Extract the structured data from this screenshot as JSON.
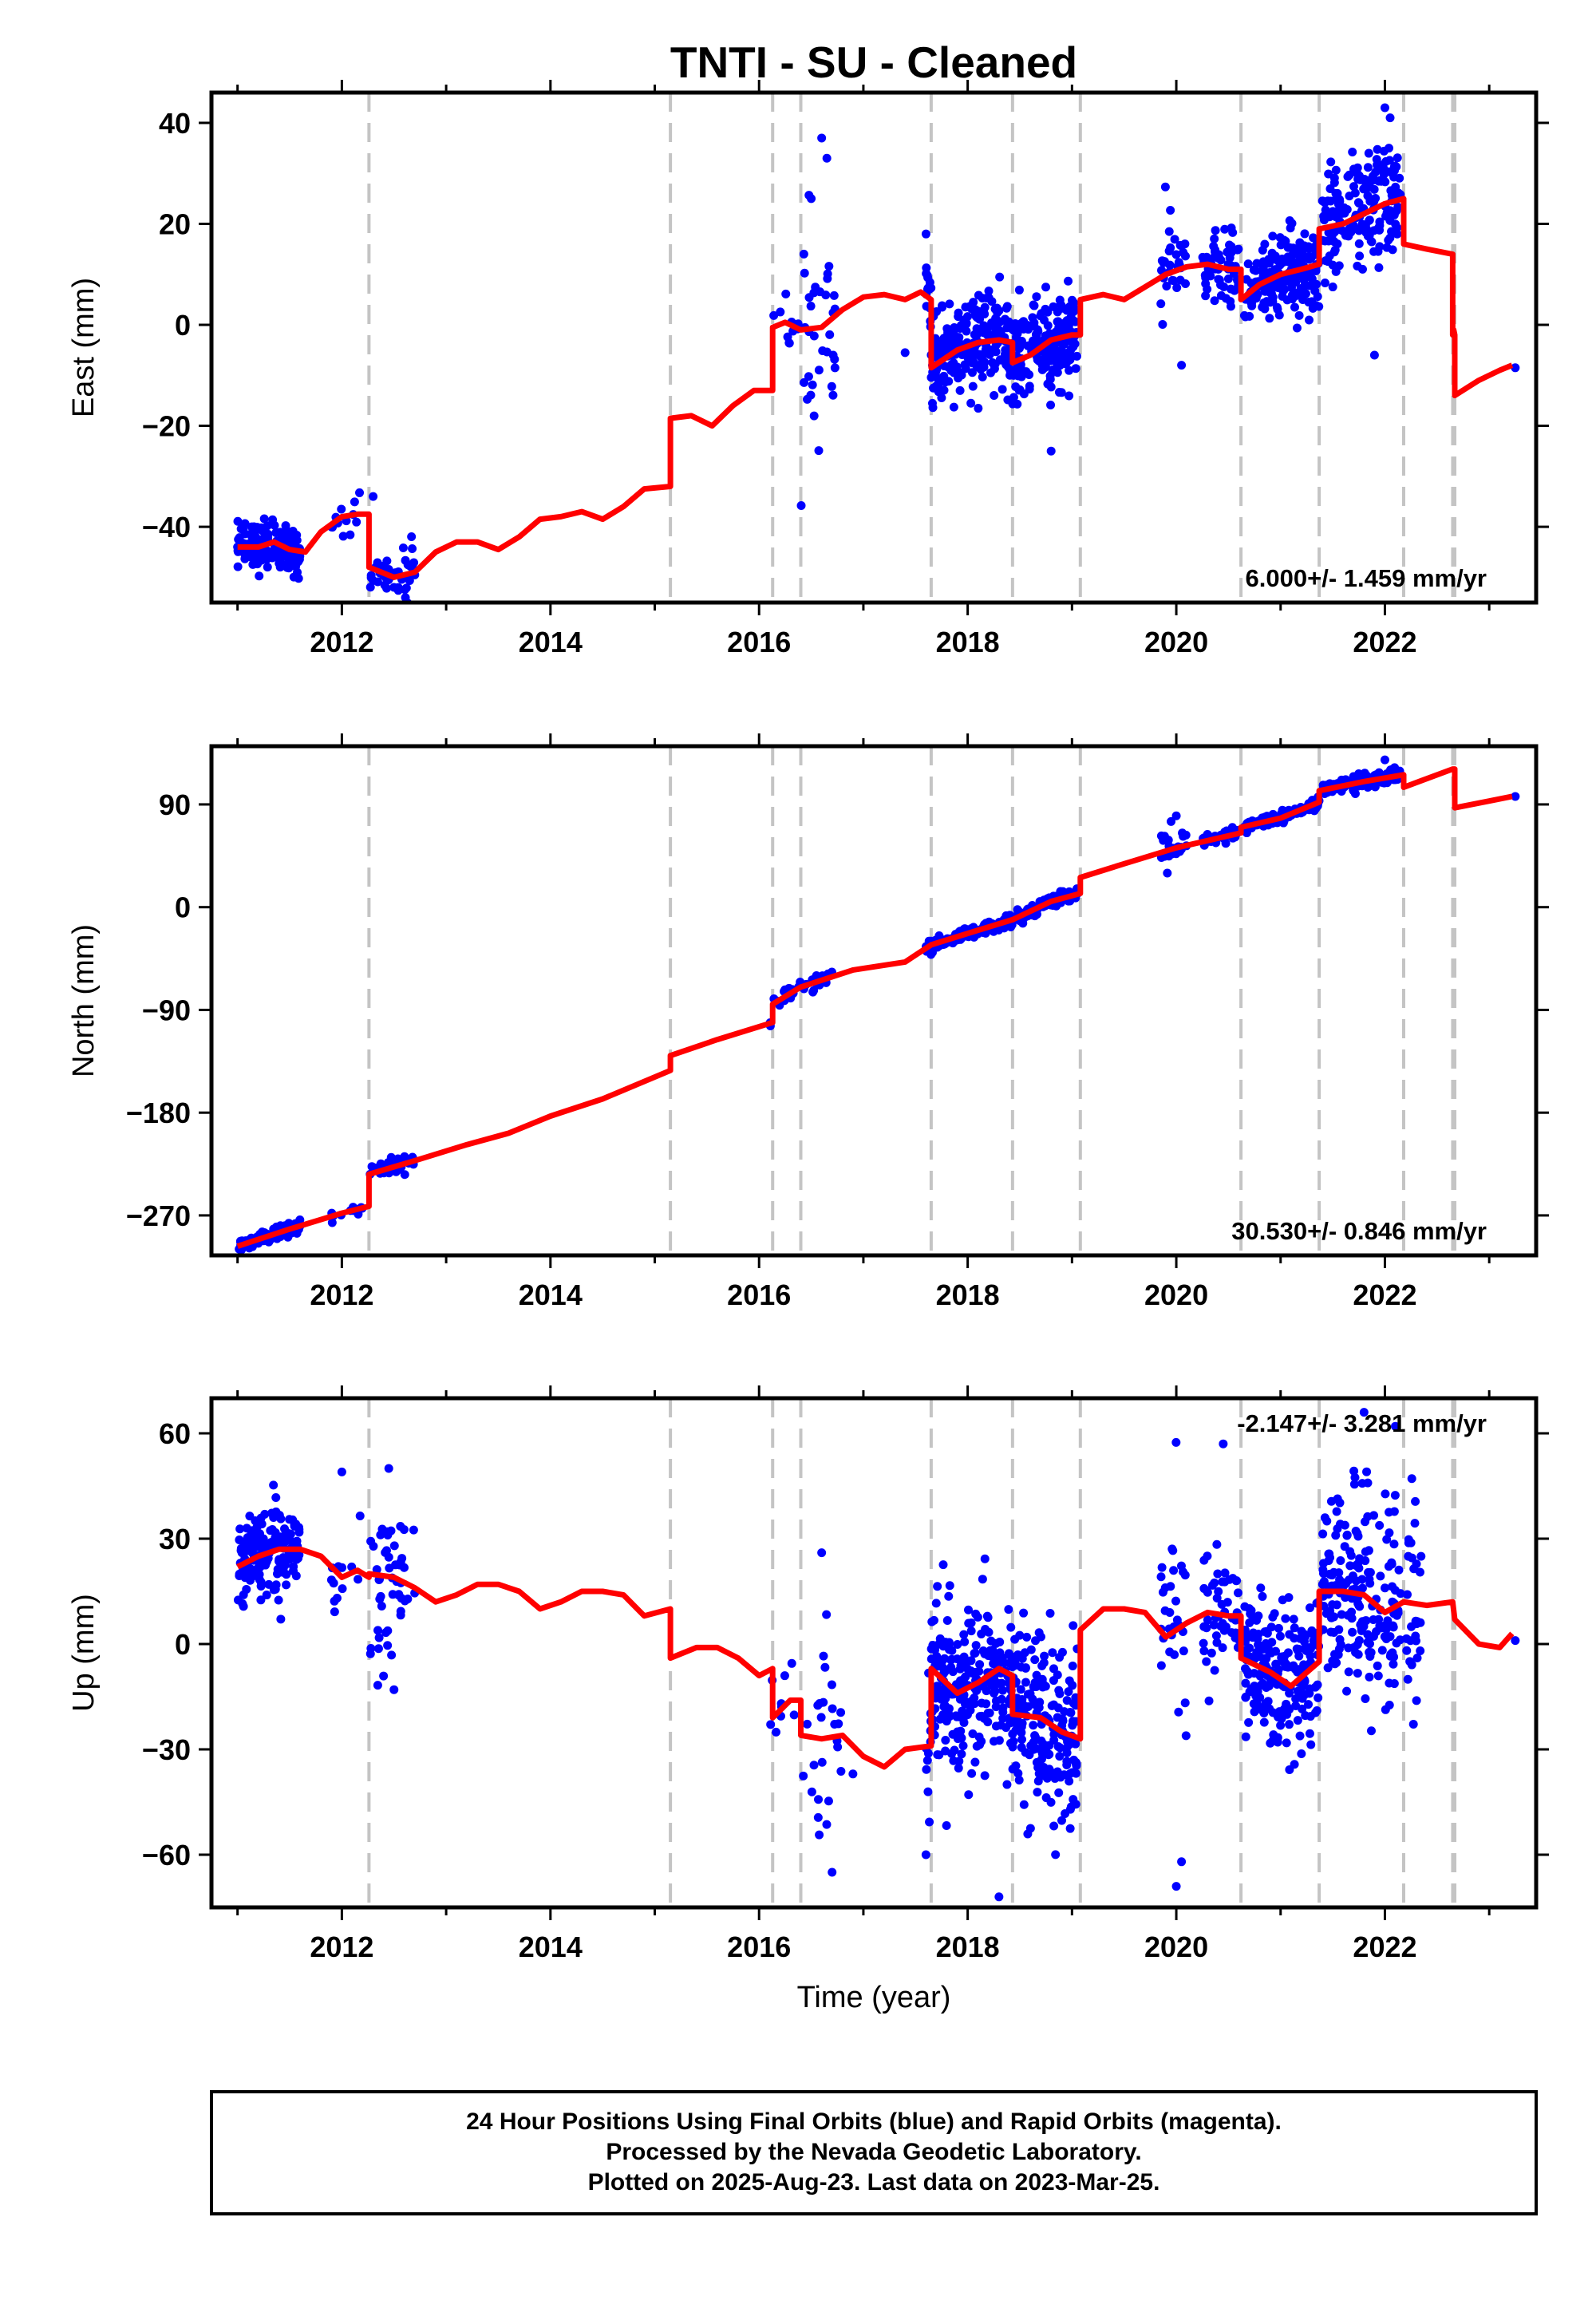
{
  "title": "TNTI  - SU - Cleaned",
  "time_label": "Time (year)",
  "footer": [
    "24 Hour Positions Using Final Orbits (blue) and Rapid Orbits (magenta).",
    "Processed by the Nevada Geodetic Laboratory.",
    "Plotted on 2025-Aug-23. Last data on 2023-Mar-25."
  ],
  "colors": {
    "points": "#0000ff",
    "model": "#ff0000",
    "steps": "#c4c4c4",
    "frame": "#000000"
  },
  "chart_data": [
    {
      "type": "scatter",
      "ylabel": "East (mm)",
      "xlim": [
        2010.75,
        2023.45
      ],
      "ylim": [
        -55,
        46
      ],
      "xticks": [
        2012,
        2014,
        2016,
        2018,
        2020,
        2022
      ],
      "yticks": [
        -40,
        -20,
        0,
        20,
        40
      ],
      "rate": "6.000+/- 1.459 mm/yr",
      "rate_position": "bottom-right",
      "step_lines": [
        2012.26,
        2015.15,
        2016.13,
        2016.4,
        2017.65,
        2018.43,
        2019.08,
        2020.62,
        2021.37,
        2022.18,
        2022.65,
        2022.67
      ],
      "model": [
        [
          2011.0,
          -44
        ],
        [
          2011.2,
          -44
        ],
        [
          2011.35,
          -43
        ],
        [
          2011.5,
          -44.5
        ],
        [
          2011.65,
          -45
        ],
        [
          2011.8,
          -41
        ],
        [
          2012.0,
          -38
        ],
        [
          2012.15,
          -37.5
        ],
        [
          2012.26,
          -37.5
        ],
        [
          2012.26,
          -48
        ],
        [
          2012.5,
          -50
        ],
        [
          2012.7,
          -49
        ],
        [
          2012.9,
          -45
        ],
        [
          2013.1,
          -43
        ],
        [
          2013.3,
          -43
        ],
        [
          2013.5,
          -44.5
        ],
        [
          2013.7,
          -42
        ],
        [
          2013.9,
          -38.5
        ],
        [
          2014.1,
          -38
        ],
        [
          2014.3,
          -37
        ],
        [
          2014.5,
          -38.5
        ],
        [
          2014.7,
          -36
        ],
        [
          2014.9,
          -32.5
        ],
        [
          2015.15,
          -32
        ],
        [
          2015.15,
          -18.5
        ],
        [
          2015.35,
          -18
        ],
        [
          2015.55,
          -20
        ],
        [
          2015.75,
          -16
        ],
        [
          2015.95,
          -13
        ],
        [
          2016.13,
          -13
        ],
        [
          2016.13,
          -0.5
        ],
        [
          2016.25,
          0.5
        ],
        [
          2016.4,
          -1
        ],
        [
          2016.6,
          -0.5
        ],
        [
          2016.8,
          3
        ],
        [
          2017.0,
          5.5
        ],
        [
          2017.2,
          6
        ],
        [
          2017.4,
          5
        ],
        [
          2017.55,
          6.5
        ],
        [
          2017.65,
          5
        ],
        [
          2017.65,
          -8.5
        ],
        [
          2017.9,
          -5
        ],
        [
          2018.1,
          -3.5
        ],
        [
          2018.3,
          -3
        ],
        [
          2018.43,
          -3.5
        ],
        [
          2018.43,
          -7.5
        ],
        [
          2018.6,
          -6
        ],
        [
          2018.8,
          -3
        ],
        [
          2019.0,
          -2
        ],
        [
          2019.08,
          -2
        ],
        [
          2019.08,
          5
        ],
        [
          2019.3,
          6
        ],
        [
          2019.5,
          5
        ],
        [
          2019.7,
          7.5
        ],
        [
          2019.9,
          10
        ],
        [
          2020.1,
          11.5
        ],
        [
          2020.3,
          12
        ],
        [
          2020.5,
          11
        ],
        [
          2020.62,
          11
        ],
        [
          2020.62,
          5
        ],
        [
          2020.8,
          8
        ],
        [
          2021.0,
          10
        ],
        [
          2021.2,
          11
        ],
        [
          2021.37,
          12
        ],
        [
          2021.37,
          19
        ],
        [
          2021.6,
          20
        ],
        [
          2021.8,
          22
        ],
        [
          2022.0,
          24
        ],
        [
          2022.18,
          25
        ],
        [
          2022.18,
          16
        ],
        [
          2022.4,
          15
        ],
        [
          2022.65,
          14
        ],
        [
          2022.65,
          -2
        ],
        [
          2022.66,
          -1
        ],
        [
          2022.67,
          -2
        ],
        [
          2022.67,
          -14
        ],
        [
          2022.9,
          -11
        ],
        [
          2023.1,
          -9
        ],
        [
          2023.22,
          -8
        ]
      ],
      "clusters": [
        {
          "x": [
            2011.0,
            2011.6
          ],
          "center": "model",
          "spread": 2.4,
          "count": 150
        },
        {
          "x": [
            2011.9,
            2012.2
          ],
          "center": "model",
          "spread": 2.5,
          "count": 12
        },
        {
          "x": [
            2012.27,
            2012.7
          ],
          "center": "model",
          "spread": 2.5,
          "count": 40
        },
        {
          "x": [
            2016.1,
            2016.4
          ],
          "center": "model",
          "spread": 3.0,
          "count": 10
        },
        {
          "x": [
            2016.4,
            2016.75
          ],
          "center": "model",
          "spread": 10.0,
          "count": 35
        },
        {
          "x": [
            2017.6,
            2018.43
          ],
          "center": "model",
          "spread": 4.5,
          "count": 260
        },
        {
          "x": [
            2018.43,
            2019.05
          ],
          "center": "model",
          "spread": 4.5,
          "count": 200
        },
        {
          "x": [
            2019.85,
            2020.1
          ],
          "center": "model",
          "spread": 5.5,
          "count": 30
        },
        {
          "x": [
            2020.25,
            2020.6
          ],
          "center": "model",
          "spread": 3.5,
          "count": 60
        },
        {
          "x": [
            2020.65,
            2021.37
          ],
          "center": "model",
          "spread": 4.0,
          "count": 200
        },
        {
          "x": [
            2021.4,
            2022.15
          ],
          "center": "model",
          "spread": 6.0,
          "count": 180
        }
      ],
      "points": [
        [
          2011.0,
          -44
        ],
        [
          2012.3,
          -34
        ],
        [
          2012.5,
          -52
        ],
        [
          2016.6,
          37
        ],
        [
          2016.65,
          33
        ],
        [
          2016.5,
          25
        ],
        [
          2018.8,
          -25
        ],
        [
          2022.0,
          43
        ],
        [
          2022.05,
          41
        ],
        [
          2021.9,
          -6
        ],
        [
          2020.05,
          -8
        ],
        [
          2023.25,
          -8.5
        ],
        [
          2017.4,
          -5.5
        ]
      ]
    },
    {
      "type": "scatter",
      "ylabel": "North (mm)",
      "xlim": [
        2010.75,
        2023.45
      ],
      "ylim": [
        -305,
        141
      ],
      "xticks": [
        2012,
        2014,
        2016,
        2018,
        2020,
        2022
      ],
      "yticks": [
        -270,
        -180,
        -90,
        0,
        90
      ],
      "rate": "30.530+/- 0.846 mm/yr",
      "rate_position": "bottom-right",
      "step_lines": [
        2012.26,
        2015.15,
        2016.13,
        2016.4,
        2017.65,
        2018.43,
        2019.08,
        2020.62,
        2021.37,
        2022.18,
        2022.65,
        2022.67
      ],
      "model": [
        [
          2011.0,
          -297
        ],
        [
          2011.5,
          -282
        ],
        [
          2012.0,
          -268
        ],
        [
          2012.26,
          -262
        ],
        [
          2012.26,
          -234
        ],
        [
          2012.7,
          -222
        ],
        [
          2013.2,
          -208
        ],
        [
          2013.6,
          -198
        ],
        [
          2014.0,
          -183
        ],
        [
          2014.5,
          -168
        ],
        [
          2015.15,
          -143
        ],
        [
          2015.15,
          -130
        ],
        [
          2015.6,
          -116
        ],
        [
          2016.13,
          -101
        ],
        [
          2016.13,
          -85
        ],
        [
          2016.4,
          -70
        ],
        [
          2016.9,
          -55
        ],
        [
          2017.4,
          -48
        ],
        [
          2017.65,
          -33
        ],
        [
          2018.0,
          -23
        ],
        [
          2018.43,
          -11
        ],
        [
          2018.8,
          5
        ],
        [
          2019.08,
          12
        ],
        [
          2019.08,
          26
        ],
        [
          2019.5,
          38
        ],
        [
          2020.0,
          52
        ],
        [
          2020.62,
          65
        ],
        [
          2020.62,
          70
        ],
        [
          2021.0,
          78
        ],
        [
          2021.37,
          92
        ],
        [
          2021.37,
          102
        ],
        [
          2021.8,
          110
        ],
        [
          2022.18,
          116
        ],
        [
          2022.18,
          105
        ],
        [
          2022.65,
          121
        ],
        [
          2022.67,
          121
        ],
        [
          2022.67,
          87
        ],
        [
          2023.0,
          93
        ],
        [
          2023.22,
          97
        ]
      ],
      "clusters": [
        {
          "x": [
            2011.0,
            2011.6
          ],
          "center": "model",
          "spread": 2.5,
          "count": 120
        },
        {
          "x": [
            2011.9,
            2012.2
          ],
          "center": "model",
          "spread": 2.5,
          "count": 12
        },
        {
          "x": [
            2012.27,
            2012.7
          ],
          "center": "model",
          "spread": 4.0,
          "count": 40
        },
        {
          "x": [
            2016.1,
            2016.7
          ],
          "center": "model",
          "spread": 3.0,
          "count": 40
        },
        {
          "x": [
            2017.6,
            2019.05
          ],
          "center": "model",
          "spread": 2.5,
          "count": 300
        },
        {
          "x": [
            2019.85,
            2020.1
          ],
          "center": "model",
          "spread": 8.0,
          "count": 25
        },
        {
          "x": [
            2020.25,
            2020.6
          ],
          "center": "model",
          "spread": 3.0,
          "count": 50
        },
        {
          "x": [
            2020.65,
            2021.37
          ],
          "center": "model",
          "spread": 2.5,
          "count": 150
        },
        {
          "x": [
            2021.4,
            2022.15
          ],
          "center": "model",
          "spread": 3.0,
          "count": 150
        }
      ],
      "points": [
        [
          2019.95,
          75
        ],
        [
          2020.0,
          80
        ],
        [
          2022.0,
          129
        ],
        [
          2023.25,
          97
        ],
        [
          2016.55,
          -60
        ]
      ]
    },
    {
      "type": "scatter",
      "ylabel": "Up (mm)",
      "xlim": [
        2010.75,
        2023.45
      ],
      "ylim": [
        -75,
        70
      ],
      "xticks": [
        2012,
        2014,
        2016,
        2018,
        2020,
        2022
      ],
      "yticks": [
        -60,
        -30,
        0,
        30,
        60
      ],
      "rate": "-2.147+/- 3.281 mm/yr",
      "rate_position": "top-right",
      "step_lines": [
        2012.26,
        2015.15,
        2016.13,
        2016.4,
        2017.65,
        2018.43,
        2019.08,
        2020.62,
        2021.37,
        2022.18,
        2022.65,
        2022.67
      ],
      "model": [
        [
          2011.0,
          22
        ],
        [
          2011.2,
          25
        ],
        [
          2011.4,
          27
        ],
        [
          2011.6,
          27
        ],
        [
          2011.8,
          25
        ],
        [
          2012.0,
          19
        ],
        [
          2012.15,
          21
        ],
        [
          2012.26,
          19
        ],
        [
          2012.26,
          20
        ],
        [
          2012.5,
          19
        ],
        [
          2012.7,
          16
        ],
        [
          2012.9,
          12
        ],
        [
          2013.1,
          14
        ],
        [
          2013.3,
          17
        ],
        [
          2013.5,
          17
        ],
        [
          2013.7,
          15
        ],
        [
          2013.9,
          10
        ],
        [
          2014.1,
          12
        ],
        [
          2014.3,
          15
        ],
        [
          2014.5,
          15
        ],
        [
          2014.7,
          14
        ],
        [
          2014.9,
          8
        ],
        [
          2015.15,
          10
        ],
        [
          2015.15,
          -4
        ],
        [
          2015.4,
          -1
        ],
        [
          2015.6,
          -1
        ],
        [
          2015.8,
          -4
        ],
        [
          2016.0,
          -9
        ],
        [
          2016.13,
          -7
        ],
        [
          2016.13,
          -21
        ],
        [
          2016.3,
          -16
        ],
        [
          2016.4,
          -16
        ],
        [
          2016.4,
          -26
        ],
        [
          2016.6,
          -27
        ],
        [
          2016.8,
          -26
        ],
        [
          2017.0,
          -32
        ],
        [
          2017.2,
          -35
        ],
        [
          2017.4,
          -30
        ],
        [
          2017.65,
          -29
        ],
        [
          2017.65,
          -7
        ],
        [
          2017.9,
          -14
        ],
        [
          2018.1,
          -11
        ],
        [
          2018.3,
          -7
        ],
        [
          2018.43,
          -9
        ],
        [
          2018.43,
          -20
        ],
        [
          2018.7,
          -21
        ],
        [
          2018.9,
          -25
        ],
        [
          2019.08,
          -27
        ],
        [
          2019.08,
          4
        ],
        [
          2019.3,
          10
        ],
        [
          2019.5,
          10
        ],
        [
          2019.7,
          9
        ],
        [
          2019.9,
          2
        ],
        [
          2020.1,
          6
        ],
        [
          2020.3,
          9
        ],
        [
          2020.5,
          8
        ],
        [
          2020.62,
          8
        ],
        [
          2020.62,
          -4
        ],
        [
          2020.9,
          -8
        ],
        [
          2021.1,
          -12
        ],
        [
          2021.37,
          -5
        ],
        [
          2021.37,
          15
        ],
        [
          2021.6,
          15
        ],
        [
          2021.8,
          14
        ],
        [
          2022.0,
          9
        ],
        [
          2022.18,
          12
        ],
        [
          2022.4,
          11
        ],
        [
          2022.65,
          12
        ],
        [
          2022.67,
          7
        ],
        [
          2022.9,
          0
        ],
        [
          2023.1,
          -1
        ],
        [
          2023.22,
          3
        ]
      ],
      "clusters": [
        {
          "x": [
            2011.0,
            2011.6
          ],
          "center": "model",
          "spread": 6.0,
          "count": 170
        },
        {
          "x": [
            2011.9,
            2012.2
          ],
          "center": "model",
          "spread": 9.0,
          "count": 12
        },
        {
          "x": [
            2012.27,
            2012.7
          ],
          "center": "model",
          "spread": 12.0,
          "count": 50
        },
        {
          "x": [
            2016.1,
            2016.4
          ],
          "center": "model",
          "spread": 9.0,
          "count": 10
        },
        {
          "x": [
            2016.4,
            2016.8
          ],
          "center": "model",
          "spread": 14.0,
          "count": 25
        },
        {
          "x": [
            2017.6,
            2018.43
          ],
          "center": "model",
          "spread": 12.0,
          "count": 260
        },
        {
          "x": [
            2018.43,
            2019.05
          ],
          "center": "model",
          "spread": 12.0,
          "count": 200
        },
        {
          "x": [
            2019.85,
            2020.1
          ],
          "center": "model",
          "spread": 15.0,
          "count": 30
        },
        {
          "x": [
            2020.25,
            2020.6
          ],
          "center": "model",
          "spread": 10.0,
          "count": 50
        },
        {
          "x": [
            2020.65,
            2021.37
          ],
          "center": "model",
          "spread": 10.0,
          "count": 220
        },
        {
          "x": [
            2021.4,
            2022.15
          ],
          "center": "model",
          "spread": 15.0,
          "count": 200
        },
        {
          "x": [
            2022.2,
            2022.35
          ],
          "center": "model",
          "spread": 20.0,
          "count": 30
        }
      ],
      "points": [
        [
          2012.0,
          49
        ],
        [
          2012.45,
          50
        ],
        [
          2012.5,
          -13
        ],
        [
          2016.6,
          26
        ],
        [
          2016.7,
          -65
        ],
        [
          2018.3,
          -72
        ],
        [
          2020.0,
          -69
        ],
        [
          2020.05,
          -62
        ],
        [
          2020.45,
          57
        ],
        [
          2021.8,
          66
        ],
        [
          2022.1,
          62
        ],
        [
          2023.25,
          1
        ],
        [
          2017.6,
          -60
        ],
        [
          2016.9,
          -37
        ]
      ]
    }
  ]
}
